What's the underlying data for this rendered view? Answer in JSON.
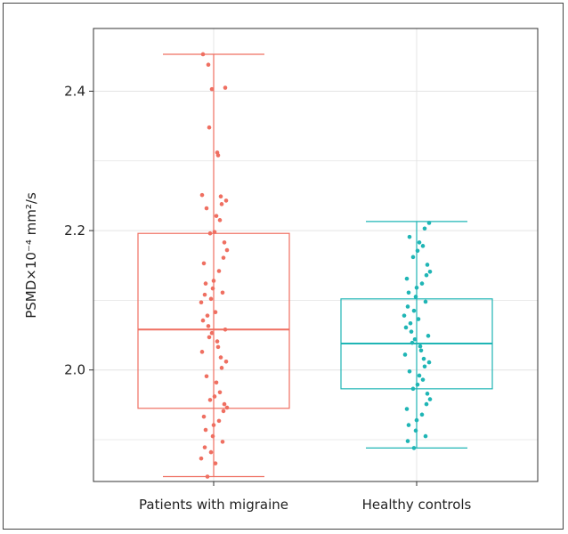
{
  "chart_data": {
    "type": "boxplot",
    "title": "",
    "xlabel": "",
    "ylabel": "PSMD×10⁻⁴ mm²/s",
    "ylim": [
      1.84,
      2.49
    ],
    "yticks": [
      "2.0",
      "2.2",
      "2.4"
    ],
    "ytick_values": [
      2.0,
      2.2,
      2.4
    ],
    "grid": true,
    "series": [
      {
        "name": "Patients with migraine",
        "color": "#ef6f61",
        "whisker_low": 1.847,
        "q1": 1.945,
        "median": 2.058,
        "q3": 2.196,
        "whisker_high": 2.453,
        "points": [
          2.453,
          2.438,
          2.405,
          2.403,
          2.348,
          2.312,
          2.308,
          2.251,
          2.249,
          2.243,
          2.238,
          2.232,
          2.221,
          2.215,
          2.198,
          2.196,
          2.183,
          2.172,
          2.161,
          2.153,
          2.142,
          2.128,
          2.124,
          2.117,
          2.111,
          2.108,
          2.102,
          2.097,
          2.083,
          2.078,
          2.071,
          2.063,
          2.058,
          2.053,
          2.047,
          2.041,
          2.033,
          2.026,
          2.018,
          2.012,
          2.003,
          1.991,
          1.982,
          1.968,
          1.962,
          1.957,
          1.951,
          1.946,
          1.941,
          1.933,
          1.927,
          1.921,
          1.914,
          1.905,
          1.897,
          1.889,
          1.882,
          1.873,
          1.866,
          1.847
        ]
      },
      {
        "name": "Healthy controls",
        "color": "#1fb5b5",
        "whisker_low": 1.888,
        "q1": 1.973,
        "median": 2.038,
        "q3": 2.102,
        "whisker_high": 2.213,
        "points": [
          2.211,
          2.203,
          2.191,
          2.183,
          2.178,
          2.171,
          2.162,
          2.151,
          2.141,
          2.136,
          2.131,
          2.124,
          2.118,
          2.111,
          2.105,
          2.098,
          2.091,
          2.085,
          2.078,
          2.073,
          2.067,
          2.061,
          2.055,
          2.049,
          2.044,
          2.039,
          2.034,
          2.028,
          2.022,
          2.016,
          2.011,
          2.005,
          1.998,
          1.992,
          1.986,
          1.979,
          1.973,
          1.966,
          1.958,
          1.951,
          1.944,
          1.936,
          1.928,
          1.921,
          1.913,
          1.905,
          1.898,
          1.888
        ]
      }
    ],
    "categories": [
      "Patients with migraine",
      "Healthy controls"
    ]
  }
}
